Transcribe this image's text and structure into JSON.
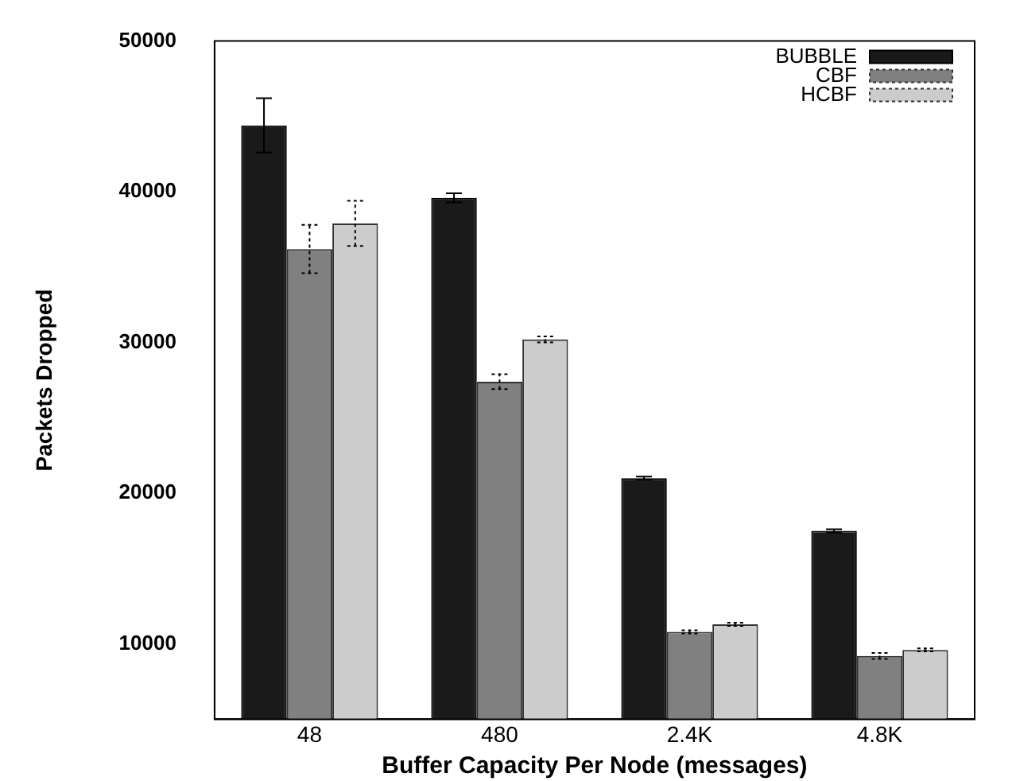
{
  "chart_data": {
    "type": "bar",
    "xlabel": "Buffer Capacity Per Node (messages)",
    "ylabel": "Packets Dropped",
    "categories": [
      "48",
      "480",
      "2.4K",
      "4.8K"
    ],
    "series": [
      {
        "name": "BUBBLE",
        "color": "#1a1a1a",
        "values": [
          44400,
          39600,
          21000,
          17500
        ],
        "errors": [
          1800,
          300,
          100,
          100
        ]
      },
      {
        "name": "CBF",
        "color": "#808080",
        "values": [
          36200,
          27400,
          10800,
          9200
        ],
        "errors": [
          1600,
          500,
          100,
          200
        ]
      },
      {
        "name": "HCBF",
        "color": "#cccccc",
        "values": [
          37900,
          30200,
          11300,
          9600
        ],
        "errors": [
          1500,
          200,
          100,
          100
        ]
      }
    ],
    "ylim": [
      5000,
      50000
    ],
    "yticks": [
      10000,
      20000,
      30000,
      40000,
      50000
    ],
    "grid": false,
    "legend": "top right"
  }
}
